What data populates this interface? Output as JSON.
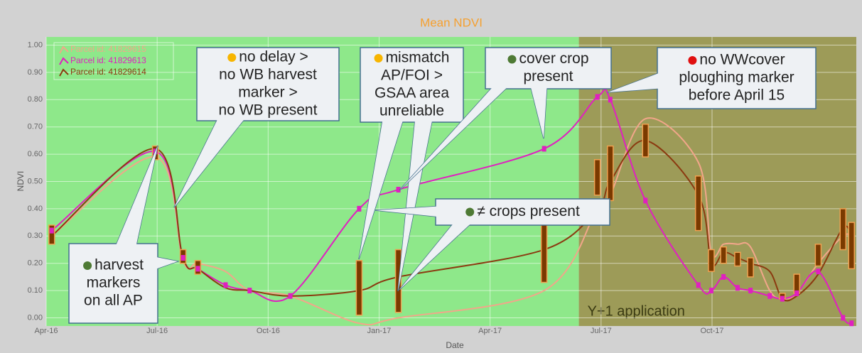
{
  "chart_data": {
    "type": "line",
    "title": "Mean NDVI",
    "xlabel": "Date",
    "ylabel": "NDVI",
    "xlim": [
      0,
      21.9
    ],
    "ylim": [
      -0.03,
      1.03
    ],
    "xticks": [
      {
        "value": 0,
        "label": "Apr-16"
      },
      {
        "value": 3,
        "label": "Jul-16"
      },
      {
        "value": 6,
        "label": "Oct-16"
      },
      {
        "value": 9,
        "label": "Jan-17"
      },
      {
        "value": 12,
        "label": "Apr-17"
      },
      {
        "value": 15,
        "label": "Jul-17"
      },
      {
        "value": 18,
        "label": "Oct-17"
      }
    ],
    "yticks": [
      {
        "value": 0,
        "label": "0.00"
      },
      {
        "value": 0.1,
        "label": "0.10"
      },
      {
        "value": 0.2,
        "label": "0.20"
      },
      {
        "value": 0.3,
        "label": "0.30"
      },
      {
        "value": 0.4,
        "label": "0.40"
      },
      {
        "value": 0.5,
        "label": "0.50"
      },
      {
        "value": 0.6,
        "label": "0.60"
      },
      {
        "value": 0.7,
        "label": "0.70"
      },
      {
        "value": 0.8,
        "label": "0.80"
      },
      {
        "value": 0.9,
        "label": "0.90"
      },
      {
        "value": 1,
        "label": "1.00"
      }
    ],
    "grid": true,
    "legend": "upper left",
    "regions": [
      {
        "from": 0,
        "to": 14.4,
        "color": "#8ee88a"
      },
      {
        "from": 14.4,
        "to": 21.9,
        "color": "#9d9b58",
        "label": "Y+1 application"
      }
    ],
    "series": [
      {
        "name": "Parcel id: 41829615",
        "color": "#f2a68a",
        "x": [
          0.15,
          2.95,
          3.7,
          4.1,
          4.85,
          5.5,
          6.6,
          8.46,
          9.52,
          13.46,
          14.9,
          15.25,
          16.2,
          17.63,
          17.98,
          18.31,
          18.69,
          19.04,
          19.56,
          19.9,
          20.29,
          20.87,
          21.54,
          21.77
        ],
        "values": [
          0.3,
          0.59,
          0.21,
          0.2,
          0.17,
          0.1,
          0.08,
          -0.02,
          0.0,
          0.1,
          0.4,
          0.45,
          0.73,
          0.57,
          0.24,
          0.27,
          0.27,
          0.26,
          0.1,
          0.07,
          0.09,
          0.2,
          0.3,
          0.3
        ]
      },
      {
        "name": "Parcel id: 41829613",
        "color": "#e020c0",
        "x": [
          0.15,
          2.95,
          3.7,
          4.1,
          4.85,
          5.5,
          6.6,
          8.46,
          9.52,
          13.46,
          14.9,
          15.25,
          16.2,
          17.63,
          17.98,
          18.31,
          18.69,
          19.04,
          19.56,
          19.9,
          20.29,
          20.87,
          21.54,
          21.77
        ],
        "values": [
          0.32,
          0.61,
          0.22,
          0.18,
          0.12,
          0.1,
          0.08,
          0.4,
          0.47,
          0.62,
          0.81,
          0.8,
          0.43,
          0.12,
          0.1,
          0.15,
          0.11,
          0.1,
          0.08,
          0.07,
          0.09,
          0.17,
          0.0,
          -0.02
        ]
      },
      {
        "name": "Parcel id: 41829614",
        "color": "#8b3a10",
        "x": [
          0.15,
          2.95,
          3.7,
          4.1,
          4.85,
          5.5,
          6.6,
          8.46,
          9.52,
          13.46,
          14.9,
          15.25,
          16.2,
          17.63,
          17.98,
          18.31,
          18.69,
          19.04,
          19.56,
          19.9,
          20.29,
          20.87,
          21.54,
          21.77
        ],
        "values": [
          0.3,
          0.62,
          0.22,
          0.18,
          0.11,
          0.1,
          0.08,
          0.1,
          0.15,
          0.25,
          0.4,
          0.5,
          0.65,
          0.45,
          0.2,
          0.24,
          0.22,
          0.2,
          0.17,
          0.07,
          0.08,
          0.16,
          0.33,
          0.3
        ]
      }
    ],
    "ranges": [
      {
        "x": 0.15,
        "low": 0.27,
        "high": 0.34
      },
      {
        "x": 2.95,
        "low": 0.58,
        "high": 0.63
      },
      {
        "x": 3.7,
        "low": 0.2,
        "high": 0.25
      },
      {
        "x": 4.1,
        "low": 0.16,
        "high": 0.21
      },
      {
        "x": 8.46,
        "low": 0.01,
        "high": 0.21
      },
      {
        "x": 9.52,
        "low": 0.02,
        "high": 0.25
      },
      {
        "x": 13.46,
        "low": 0.13,
        "high": 0.35
      },
      {
        "x": 14.9,
        "low": 0.45,
        "high": 0.58
      },
      {
        "x": 15.25,
        "low": 0.43,
        "high": 0.63
      },
      {
        "x": 16.2,
        "low": 0.59,
        "high": 0.71
      },
      {
        "x": 17.63,
        "low": 0.32,
        "high": 0.52
      },
      {
        "x": 17.98,
        "low": 0.17,
        "high": 0.25
      },
      {
        "x": 18.31,
        "low": 0.2,
        "high": 0.26
      },
      {
        "x": 18.69,
        "low": 0.19,
        "high": 0.24
      },
      {
        "x": 19.04,
        "low": 0.15,
        "high": 0.22
      },
      {
        "x": 19.9,
        "low": 0.07,
        "high": 0.09
      },
      {
        "x": 20.29,
        "low": 0.09,
        "high": 0.16
      },
      {
        "x": 20.87,
        "low": 0.19,
        "high": 0.27
      },
      {
        "x": 21.54,
        "low": 0.25,
        "high": 0.4
      },
      {
        "x": 21.77,
        "low": 0.18,
        "high": 0.35
      }
    ],
    "annotations": [
      {
        "lines": [
          "no delay >",
          "no WB harvest",
          "marker >",
          "no WB present"
        ],
        "bullet": "#f7b500"
      },
      {
        "lines": [
          "mismatch",
          "AP/FOI >",
          "GSAA area",
          "unreliable"
        ],
        "bullet": "#f7b500"
      },
      {
        "lines": [
          "cover crop",
          "present"
        ],
        "bullet": "#4e7a34"
      },
      {
        "lines": [
          "no WWcover",
          "ploughing marker",
          "before April 15"
        ],
        "bullet": "#e01010"
      },
      {
        "lines": [
          "≠ crops present"
        ],
        "bullet": "#4e7a34"
      },
      {
        "lines": [
          "harvest",
          "markers",
          "on all AP"
        ],
        "bullet": "#4e7a34"
      }
    ]
  }
}
